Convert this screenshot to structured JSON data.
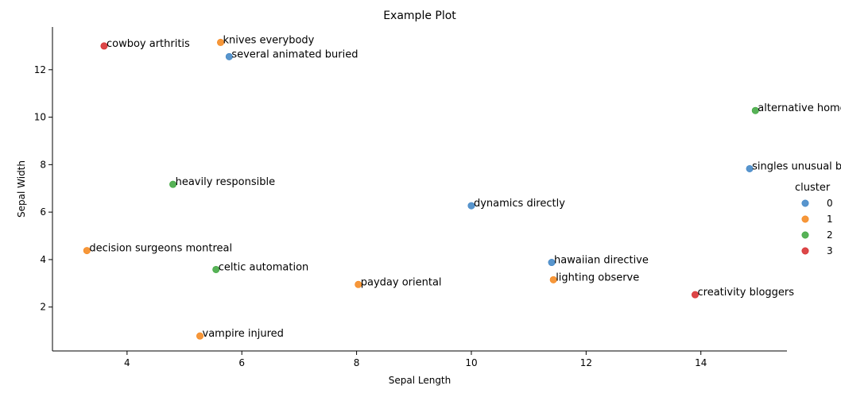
{
  "chart_data": {
    "type": "scatter",
    "title": "Example Plot",
    "xlabel": "Sepal Length",
    "ylabel": "Sepal Width",
    "xlim": [
      2.7,
      15.5
    ],
    "ylim": [
      0.15,
      13.8
    ],
    "xticks": [
      4,
      6,
      8,
      10,
      12,
      14
    ],
    "yticks": [
      2,
      4,
      6,
      8,
      10,
      12
    ],
    "grid": false,
    "legend": {
      "title": "cluster",
      "placement": "right"
    },
    "series": [
      {
        "name": "0",
        "color": "#3b82c4"
      },
      {
        "name": "1",
        "color": "#f58518"
      },
      {
        "name": "2",
        "color": "#3aa53a"
      },
      {
        "name": "3",
        "color": "#d62728"
      }
    ],
    "points": [
      {
        "label": "cowboy arthritis",
        "x": 3.6,
        "y": 13.0,
        "cluster": 3
      },
      {
        "label": "knives everybody",
        "x": 5.63,
        "y": 13.15,
        "cluster": 1
      },
      {
        "label": "several animated buried",
        "x": 5.78,
        "y": 12.55,
        "cluster": 0
      },
      {
        "label": "alternative homework",
        "x": 14.95,
        "y": 10.28,
        "cluster": 2
      },
      {
        "label": "singles unusual b",
        "x": 14.85,
        "y": 7.83,
        "cluster": 0
      },
      {
        "label": "heavily responsible",
        "x": 4.8,
        "y": 7.17,
        "cluster": 2
      },
      {
        "label": "dynamics directly",
        "x": 10.0,
        "y": 6.27,
        "cluster": 0
      },
      {
        "label": "decision surgeons montreal",
        "x": 3.3,
        "y": 4.38,
        "cluster": 1
      },
      {
        "label": "hawaiian directive",
        "x": 11.4,
        "y": 3.88,
        "cluster": 0
      },
      {
        "label": "celtic automation",
        "x": 5.55,
        "y": 3.58,
        "cluster": 2
      },
      {
        "label": "lighting observe",
        "x": 11.43,
        "y": 3.15,
        "cluster": 1
      },
      {
        "label": "payday oriental",
        "x": 8.03,
        "y": 2.95,
        "cluster": 1
      },
      {
        "label": "creativity bloggers",
        "x": 13.9,
        "y": 2.52,
        "cluster": 3
      },
      {
        "label": "vampire injured",
        "x": 5.27,
        "y": 0.78,
        "cluster": 1
      }
    ]
  }
}
